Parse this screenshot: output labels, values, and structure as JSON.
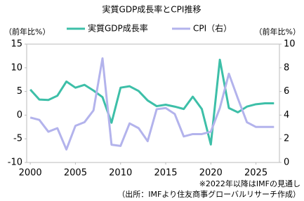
{
  "chart_data": {
    "type": "line",
    "title": "実質GDP成長率とCPI推移",
    "y_label": "（前年比%）",
    "y2_label": "（前年比%）",
    "x": [
      2000,
      2001,
      2002,
      2003,
      2004,
      2005,
      2006,
      2007,
      2008,
      2009,
      2010,
      2011,
      2012,
      2013,
      2014,
      2015,
      2016,
      2017,
      2018,
      2019,
      2020,
      2021,
      2022,
      2023,
      2024,
      2025,
      2026,
      2027
    ],
    "series": [
      {
        "name": "実質GDP成長率",
        "color": "#3dbfa8",
        "values": [
          5.4,
          3.3,
          3.2,
          4.1,
          7.1,
          5.8,
          6.4,
          5.2,
          3.8,
          -1.6,
          5.8,
          6.1,
          5.1,
          3.1,
          1.9,
          2.2,
          1.8,
          1.3,
          3.9,
          1.3,
          -6.2,
          11.7,
          1.5,
          0.6,
          1.8,
          2.3,
          2.5,
          2.5
        ]
      },
      {
        "name": "CPI（右）",
        "color": "#b3b3ec",
        "axis": "y2",
        "values": [
          3.8,
          3.6,
          2.6,
          2.9,
          1.1,
          3.1,
          3.4,
          4.4,
          8.8,
          1.5,
          1.4,
          3.3,
          2.9,
          1.8,
          4.5,
          4.6,
          4.1,
          2.2,
          2.4,
          2.4,
          2.6,
          4.6,
          7.5,
          5.4,
          3.4,
          3.0,
          3.0,
          3.0
        ]
      }
    ],
    "xlim": [
      1999.6,
      2027.6
    ],
    "xticks": [
      2000,
      2005,
      2010,
      2015,
      2020,
      2025
    ],
    "ylim": [
      -10,
      15
    ],
    "yticks": [
      -10,
      -5,
      0,
      5,
      10,
      15
    ],
    "y2lim": [
      0,
      10
    ],
    "y2ticks": [
      0,
      2,
      4,
      6,
      8,
      10
    ],
    "annotations": [
      "※2022年以降はIMFの見通し",
      "（出所：IMFより住友商事グローバルリサーチ作成）"
    ]
  }
}
